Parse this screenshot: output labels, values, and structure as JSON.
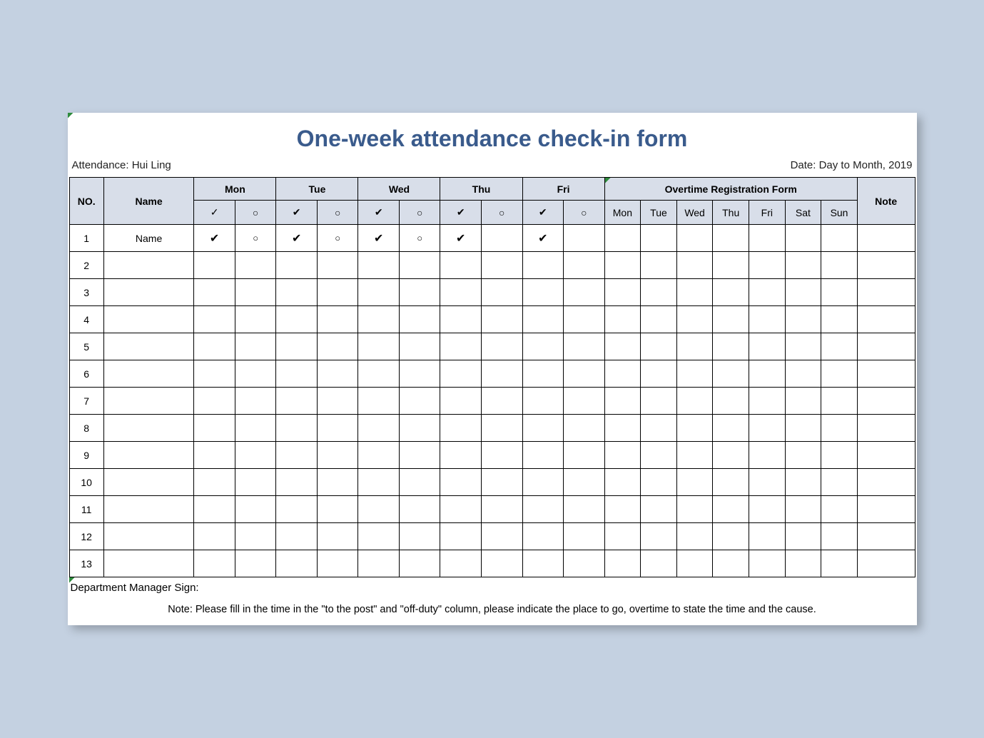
{
  "title": "One-week attendance check-in form",
  "attendance_label": "Attendance: Hui Ling",
  "date_label": "Date: Day to Month, 2019",
  "columns": {
    "no": "NO.",
    "name": "Name",
    "days": [
      "Mon",
      "Tue",
      "Wed",
      "Thu",
      "Fri"
    ],
    "overtime_header": "Overtime Registration Form",
    "overtime_days": [
      "Mon",
      "Tue",
      "Wed",
      "Thu",
      "Fri",
      "Sat",
      "Sun"
    ],
    "note": "Note",
    "check_symbol": "✓",
    "circle_symbol": "○",
    "bold_check": "✔"
  },
  "rows": [
    {
      "no": "1",
      "name": "Name",
      "marks": [
        "✔",
        "○",
        "✔",
        "○",
        "✔",
        "○",
        "✔",
        "",
        "✔",
        ""
      ],
      "ot": [
        "",
        "",
        "",
        "",
        "",
        "",
        ""
      ],
      "note": ""
    },
    {
      "no": "2",
      "name": "",
      "marks": [
        "",
        "",
        "",
        "",
        "",
        "",
        "",
        "",
        "",
        ""
      ],
      "ot": [
        "",
        "",
        "",
        "",
        "",
        "",
        ""
      ],
      "note": ""
    },
    {
      "no": "3",
      "name": "",
      "marks": [
        "",
        "",
        "",
        "",
        "",
        "",
        "",
        "",
        "",
        ""
      ],
      "ot": [
        "",
        "",
        "",
        "",
        "",
        "",
        ""
      ],
      "note": ""
    },
    {
      "no": "4",
      "name": "",
      "marks": [
        "",
        "",
        "",
        "",
        "",
        "",
        "",
        "",
        "",
        ""
      ],
      "ot": [
        "",
        "",
        "",
        "",
        "",
        "",
        ""
      ],
      "note": ""
    },
    {
      "no": "5",
      "name": "",
      "marks": [
        "",
        "",
        "",
        "",
        "",
        "",
        "",
        "",
        "",
        ""
      ],
      "ot": [
        "",
        "",
        "",
        "",
        "",
        "",
        ""
      ],
      "note": ""
    },
    {
      "no": "6",
      "name": "",
      "marks": [
        "",
        "",
        "",
        "",
        "",
        "",
        "",
        "",
        "",
        ""
      ],
      "ot": [
        "",
        "",
        "",
        "",
        "",
        "",
        ""
      ],
      "note": ""
    },
    {
      "no": "7",
      "name": "",
      "marks": [
        "",
        "",
        "",
        "",
        "",
        "",
        "",
        "",
        "",
        ""
      ],
      "ot": [
        "",
        "",
        "",
        "",
        "",
        "",
        ""
      ],
      "note": ""
    },
    {
      "no": "8",
      "name": "",
      "marks": [
        "",
        "",
        "",
        "",
        "",
        "",
        "",
        "",
        "",
        ""
      ],
      "ot": [
        "",
        "",
        "",
        "",
        "",
        "",
        ""
      ],
      "note": ""
    },
    {
      "no": "9",
      "name": "",
      "marks": [
        "",
        "",
        "",
        "",
        "",
        "",
        "",
        "",
        "",
        ""
      ],
      "ot": [
        "",
        "",
        "",
        "",
        "",
        "",
        ""
      ],
      "note": ""
    },
    {
      "no": "10",
      "name": "",
      "marks": [
        "",
        "",
        "",
        "",
        "",
        "",
        "",
        "",
        "",
        ""
      ],
      "ot": [
        "",
        "",
        "",
        "",
        "",
        "",
        ""
      ],
      "note": ""
    },
    {
      "no": "11",
      "name": "",
      "marks": [
        "",
        "",
        "",
        "",
        "",
        "",
        "",
        "",
        "",
        ""
      ],
      "ot": [
        "",
        "",
        "",
        "",
        "",
        "",
        ""
      ],
      "note": ""
    },
    {
      "no": "12",
      "name": "",
      "marks": [
        "",
        "",
        "",
        "",
        "",
        "",
        "",
        "",
        "",
        ""
      ],
      "ot": [
        "",
        "",
        "",
        "",
        "",
        "",
        ""
      ],
      "note": ""
    },
    {
      "no": "13",
      "name": "",
      "marks": [
        "",
        "",
        "",
        "",
        "",
        "",
        "",
        "",
        "",
        ""
      ],
      "ot": [
        "",
        "",
        "",
        "",
        "",
        "",
        ""
      ],
      "note": ""
    }
  ],
  "sign_label": "Department Manager Sign:",
  "footnote": "Note: Please fill in the time in the \"to the post\" and \"off-duty\" column, please indicate the place to go, overtime to state the time and the cause.",
  "style": {
    "page_bg": "#c4d1e1",
    "sheet_bg": "#ffffff",
    "title_color": "#3a5b8c",
    "header_bg": "#d8dee9",
    "border_color": "#000000",
    "triangle_color": "#2e8b3d",
    "title_fontsize": 32,
    "body_fontsize": 14
  }
}
